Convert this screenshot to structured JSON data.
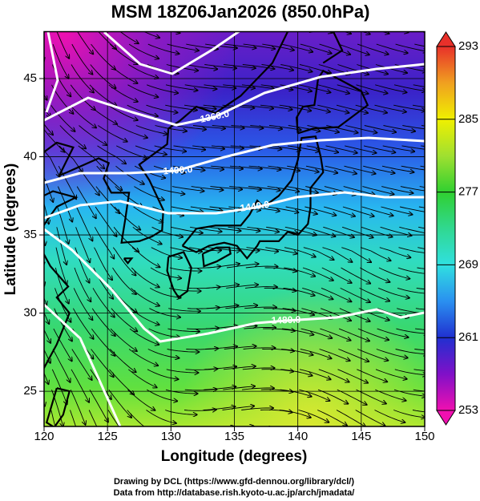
{
  "title": "MSM 18Z06Jan2026 (850.0hPa)",
  "x_axis": {
    "label": "Longitude (degrees)",
    "lim": [
      120,
      150
    ],
    "ticks": [
      120,
      125,
      130,
      135,
      140,
      145,
      150
    ]
  },
  "y_axis": {
    "label": "Latitude  (degrees)",
    "lim": [
      22.75,
      48
    ],
    "ticks": [
      25,
      30,
      35,
      40,
      45
    ]
  },
  "colorbar": {
    "lim": [
      253,
      293
    ],
    "ticks": [
      253,
      261,
      269,
      277,
      285,
      293
    ]
  },
  "contour_labels": [
    "1360.0",
    "1400.0",
    "1440.0",
    "1480.0"
  ],
  "credits": [
    "Drawing by DCL (https://www.gfd-dennou.org/library/dcl/)",
    "Data from http://database.rish.kyoto-u.ac.jp/arch/jmadata/"
  ]
}
